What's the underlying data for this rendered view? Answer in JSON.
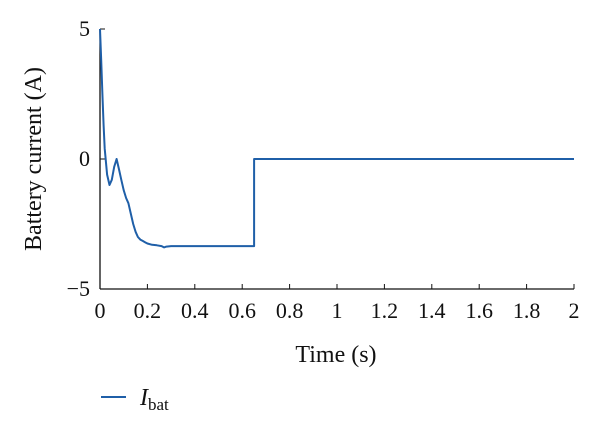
{
  "chart_data": {
    "type": "line",
    "xlabel": "Time (s)",
    "ylabel": "Battery current (A)",
    "xlim": [
      0,
      2
    ],
    "ylim": [
      -5,
      5
    ],
    "x_ticks": [
      0,
      0.2,
      0.4,
      0.6,
      0.8,
      1,
      1.2,
      1.4,
      1.6,
      1.8,
      2
    ],
    "x_tick_labels": [
      "0",
      "0.2",
      "0.4",
      "0.6",
      "0.8",
      "1",
      "1.2",
      "1.4",
      "1.6",
      "1.8",
      "2"
    ],
    "y_ticks": [
      -5,
      0,
      5
    ],
    "y_tick_labels": [
      "−5",
      "0",
      "5"
    ],
    "grid": false,
    "legend_position": "bottom-left",
    "series": [
      {
        "name_main": "I",
        "name_sub": "bat",
        "color": "#1f5fa8",
        "x": [
          0,
          0.005,
          0.01,
          0.015,
          0.02,
          0.03,
          0.04,
          0.05,
          0.06,
          0.07,
          0.08,
          0.09,
          0.1,
          0.11,
          0.12,
          0.13,
          0.14,
          0.15,
          0.16,
          0.17,
          0.18,
          0.19,
          0.2,
          0.22,
          0.24,
          0.26,
          0.27,
          0.28,
          0.3,
          0.35,
          0.4,
          0.45,
          0.5,
          0.55,
          0.6,
          0.65,
          0.65,
          0.7,
          0.8,
          1,
          1.2,
          1.4,
          1.6,
          1.8,
          2
        ],
        "y": [
          5.0,
          3.8,
          2.5,
          1.3,
          0.4,
          -0.6,
          -1.0,
          -0.8,
          -0.3,
          0.0,
          -0.4,
          -0.8,
          -1.2,
          -1.5,
          -1.7,
          -2.1,
          -2.5,
          -2.8,
          -3.0,
          -3.1,
          -3.15,
          -3.2,
          -3.25,
          -3.3,
          -3.32,
          -3.35,
          -3.4,
          -3.37,
          -3.35,
          -3.35,
          -3.35,
          -3.35,
          -3.35,
          -3.35,
          -3.35,
          -3.35,
          0.0,
          0.0,
          0.0,
          0.0,
          0.0,
          0.0,
          0.0,
          0.0,
          0.0
        ]
      }
    ]
  }
}
